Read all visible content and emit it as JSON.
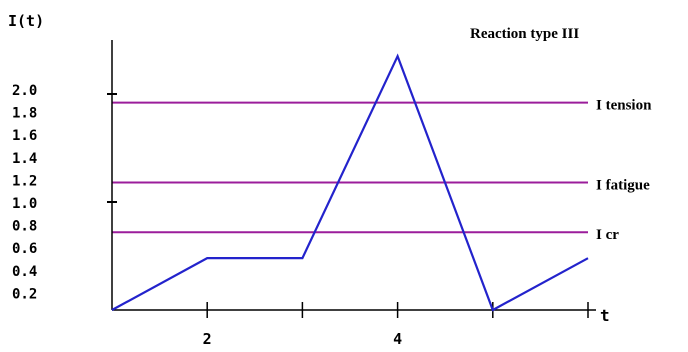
{
  "chart_data": {
    "type": "line",
    "title": "Reaction type III",
    "ylabel": "I(t)",
    "xlabel": "t",
    "xlim": [
      1,
      6
    ],
    "ylim": [
      0,
      2.1
    ],
    "x_ticks": [
      2,
      3,
      4,
      5,
      6
    ],
    "x_tick_labels": [
      "2",
      "4"
    ],
    "x_tick_label_values": [
      2,
      4
    ],
    "y_tick_labels": [
      "0.2",
      "0.4",
      "0.6",
      "0.8",
      "1.0",
      "1.2",
      "1.4",
      "1.6",
      "1.8",
      "2.0"
    ],
    "y_tick_label_values": [
      0.2,
      0.4,
      0.6,
      0.8,
      1.0,
      1.2,
      1.4,
      1.6,
      1.8,
      2.0
    ],
    "y_ticks": [
      1.0,
      2.0
    ],
    "series": [
      {
        "x": [
          1,
          2,
          3,
          4,
          5,
          6
        ],
        "y": [
          0,
          0.48,
          0.48,
          2.35,
          0,
          0.48
        ]
      }
    ],
    "thresholds": [
      {
        "label": "I tension",
        "y": 1.92
      },
      {
        "label": "I fatigue",
        "y": 1.18
      },
      {
        "label": "I cr",
        "y": 0.72
      }
    ],
    "colors": {
      "series": "#2323cc",
      "thresholds": "#9b1d9b",
      "axes": "#000000"
    },
    "grid": false
  }
}
